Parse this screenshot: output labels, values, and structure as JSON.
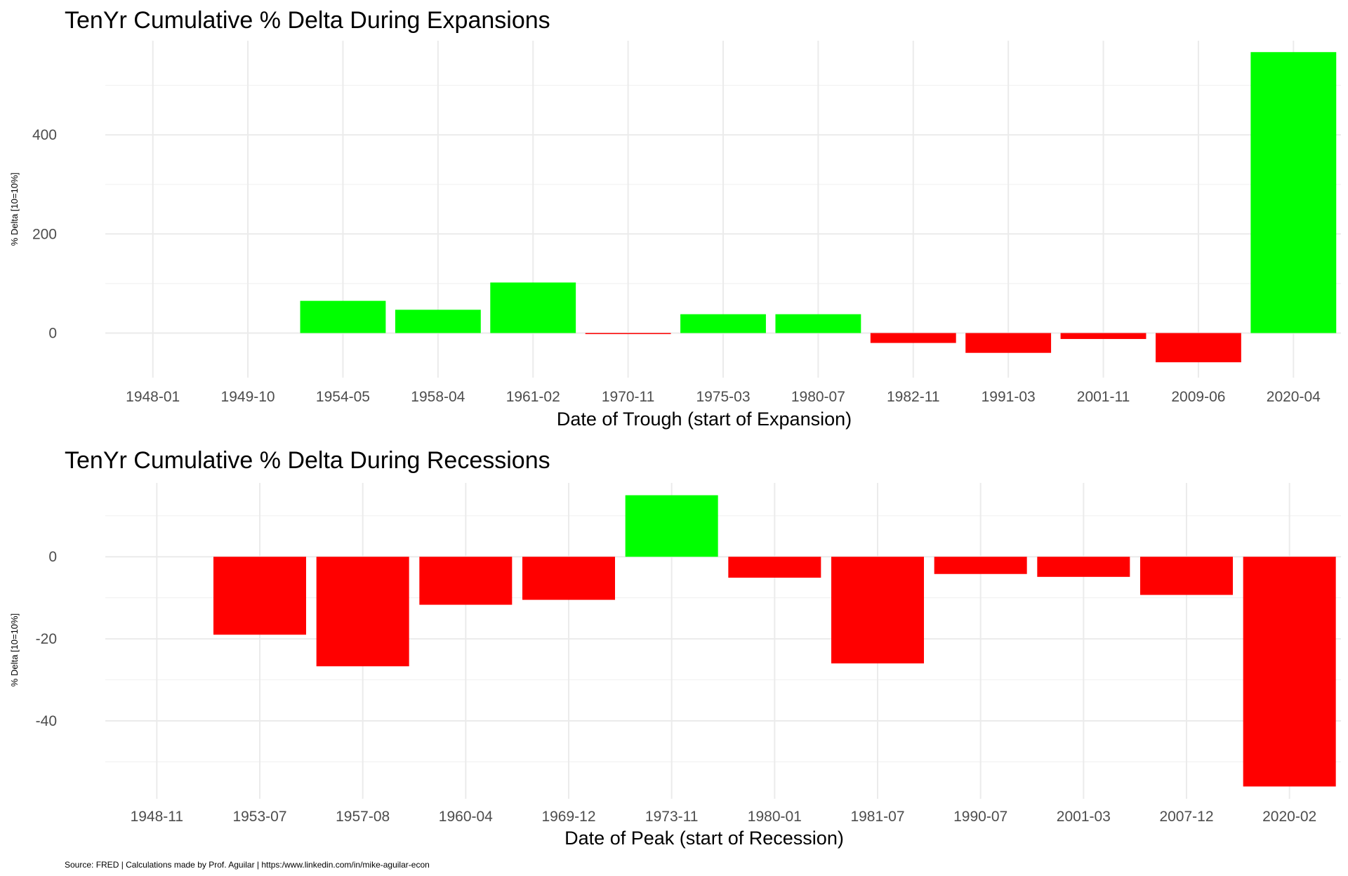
{
  "chart_data": [
    {
      "type": "bar",
      "title": "TenYr Cumulative % Delta During Expansions",
      "xlabel": "Date of Trough (start of Expansion)",
      "ylabel": "% Delta [10=10%]",
      "categories": [
        "1948-01",
        "1949-10",
        "1954-05",
        "1958-04",
        "1961-02",
        "1970-11",
        "1975-03",
        "1980-07",
        "1982-11",
        "1991-03",
        "2001-11",
        "2009-06",
        "2020-04"
      ],
      "values": [
        0,
        0,
        65,
        47,
        102,
        -2,
        38,
        38,
        -20,
        -40,
        -12,
        -59,
        567
      ],
      "ylim": [
        -90,
        590
      ],
      "yticks": [
        0,
        200,
        400
      ],
      "grid": true,
      "colors": {
        "positive": "#00ff00",
        "negative": "#ff0000"
      }
    },
    {
      "type": "bar",
      "title": "TenYr Cumulative % Delta During Recessions",
      "xlabel": "Date of Peak (start of Recession)",
      "ylabel": "% Delta [10=10%]",
      "categories": [
        "1948-11",
        "1953-07",
        "1957-08",
        "1960-04",
        "1969-12",
        "1973-11",
        "1980-01",
        "1981-07",
        "1990-07",
        "2001-03",
        "2007-12",
        "2020-02"
      ],
      "values": [
        0,
        -19,
        -26.7,
        -11.7,
        -10.5,
        15,
        -5.1,
        -26,
        -4.2,
        -4.9,
        -9.3,
        -56
      ],
      "ylim": [
        -59,
        18
      ],
      "yticks": [
        -40,
        -20,
        0
      ],
      "grid": true,
      "colors": {
        "positive": "#00ff00",
        "negative": "#ff0000"
      }
    }
  ],
  "caption": "Source: FRED | Calculations made by Prof. Aguilar | https:/www.linkedin.com/in/mike-aguilar-econ"
}
